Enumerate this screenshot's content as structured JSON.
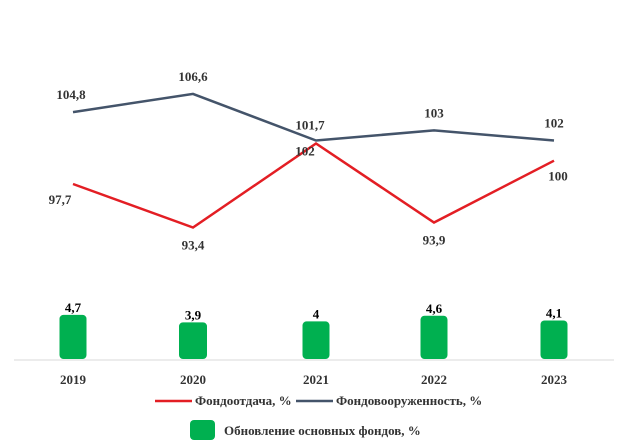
{
  "chart_data": {
    "type": "line+bar",
    "categories": [
      "2019",
      "2020",
      "2021",
      "2022",
      "2023"
    ],
    "series": [
      {
        "name": "Фондоотдача, %",
        "kind": "line",
        "color": "#e31e24",
        "values": [
          97.7,
          93.4,
          101.7,
          93.9,
          100
        ],
        "labels": [
          "97,7",
          "93,4",
          "101,7",
          "93,9",
          "100"
        ]
      },
      {
        "name": "Фондовооруженность, %",
        "kind": "line",
        "color": "#44546a",
        "values": [
          104.8,
          106.6,
          102,
          103,
          102
        ],
        "labels": [
          "104,8",
          "106,6",
          "102",
          "103",
          "102"
        ]
      },
      {
        "name": "Обновление основных фондов, %",
        "kind": "bar",
        "color": "#00b050",
        "values": [
          4.7,
          3.9,
          4,
          4.6,
          4.1
        ],
        "labels": [
          "4,7",
          "3,9",
          "4",
          "4,6",
          "4,1"
        ]
      }
    ],
    "legend_position": "bottom",
    "grid": false
  }
}
